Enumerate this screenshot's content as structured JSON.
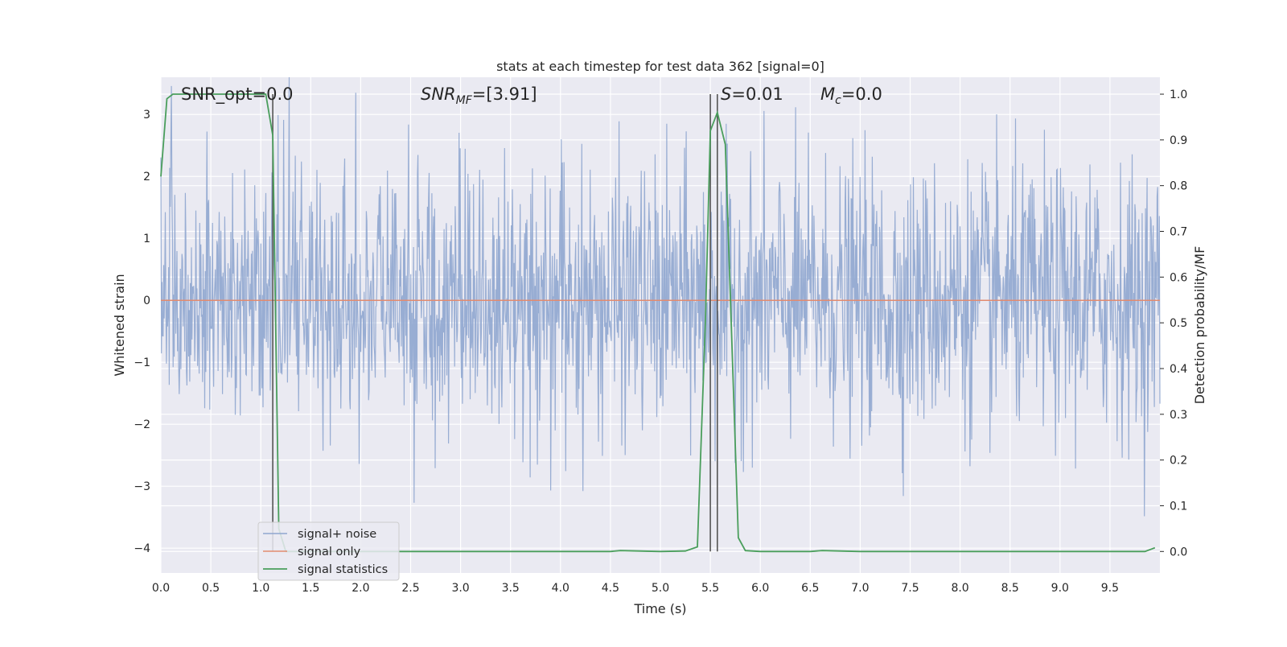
{
  "chart_data": {
    "type": "line",
    "title": "stats at each timestep for test data 362 [signal=0]",
    "xlabel": "Time (s)",
    "ylabel": "Whitened strain",
    "y2label": "Detection probability/MF",
    "xlim": [
      0,
      10
    ],
    "ylim": [
      -4.4,
      3.6
    ],
    "y2lim": [
      -0.047,
      1.037
    ],
    "grid": true,
    "legend_position": "lower-left",
    "x_ticks": [
      "0.0",
      "0.5",
      "1.0",
      "1.5",
      "2.0",
      "2.5",
      "3.0",
      "3.5",
      "4.0",
      "4.5",
      "5.0",
      "5.5",
      "6.0",
      "6.5",
      "7.0",
      "7.5",
      "8.0",
      "8.5",
      "9.0",
      "9.5"
    ],
    "y_ticks": [
      "−4",
      "−3",
      "−2",
      "−1",
      "0",
      "1",
      "2",
      "3"
    ],
    "y2_ticks": [
      "0.0",
      "0.1",
      "0.2",
      "0.3",
      "0.4",
      "0.5",
      "0.6",
      "0.7",
      "0.8",
      "0.9",
      "1.0"
    ],
    "annotations": {
      "snr_opt": "SNR_opt=0.0",
      "snr_mf_main": "SNR",
      "snr_mf_sub": "MF",
      "snr_mf_value": "=[3.91]",
      "s_var": "S",
      "s_value": "=0.01",
      "mc_var": "M",
      "mc_sub": "c",
      "mc_value": "=0.0"
    },
    "vlines": [
      1.12,
      5.5,
      5.57
    ],
    "series": [
      {
        "name": "signal+ noise",
        "color": "#8fa6cf",
        "description_values": "noise spanning approx -3.6 to 3.6 over 0-10 s",
        "envelope": [
          -4.0,
          3.6
        ]
      },
      {
        "name": "signal only",
        "color": "#e28b6f",
        "x": [
          0,
          10
        ],
        "values": [
          0,
          0
        ]
      },
      {
        "name": "signal statistics",
        "color": "#4a9e5c",
        "axis": "y2",
        "x": [
          0.0,
          0.06,
          0.12,
          0.25,
          0.5,
          0.75,
          1.0,
          1.05,
          1.12,
          1.18,
          1.25,
          1.4,
          2.0,
          3.0,
          4.0,
          4.5,
          4.6,
          5.0,
          5.25,
          5.37,
          5.45,
          5.5,
          5.57,
          5.65,
          5.78,
          5.85,
          6.0,
          6.5,
          6.62,
          7.0,
          8.0,
          9.0,
          9.85,
          9.95
        ],
        "values": [
          0.82,
          0.99,
          1.0,
          1.0,
          1.0,
          1.0,
          1.0,
          1.0,
          0.91,
          0.05,
          0.0,
          0.0,
          0.0,
          0.0,
          0.0,
          0.0,
          0.002,
          0.0,
          0.001,
          0.01,
          0.5,
          0.92,
          0.96,
          0.89,
          0.03,
          0.002,
          0.0,
          0.0,
          0.002,
          0.0,
          0.0,
          0.0,
          0.0,
          0.008
        ]
      }
    ]
  }
}
